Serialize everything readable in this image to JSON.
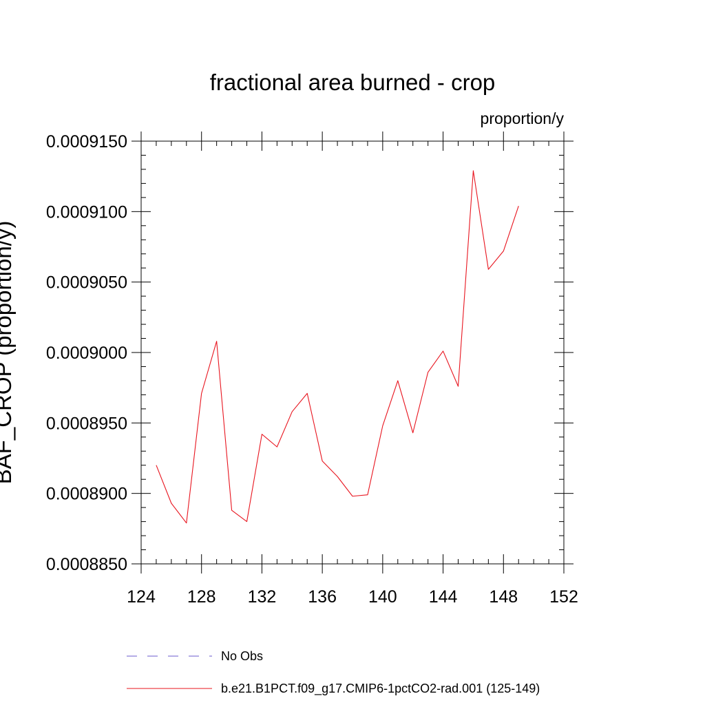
{
  "chart_data": {
    "type": "line",
    "title": "fractional area burned - crop",
    "units_label": "proportion/y",
    "ylabel": "BAF_CROP  (proportion/y)",
    "xlabel": "",
    "xlim": [
      124,
      152
    ],
    "ylim": [
      0.000885,
      0.000915
    ],
    "x_ticks": [
      "124",
      "128",
      "132",
      "136",
      "140",
      "144",
      "148",
      "152"
    ],
    "y_ticks": [
      "0.0008850",
      "0.0008900",
      "0.0008950",
      "0.0009000",
      "0.0009050",
      "0.0009100",
      "0.0009150"
    ],
    "grid": false,
    "legend": [
      {
        "label": "No Obs",
        "style": "dashed",
        "color": "#6a5acd"
      },
      {
        "label": "b.e21.B1PCT.f09_g17.CMIP6-1pctCO2-rad.001 (125-149)",
        "style": "solid",
        "color": "#e8141e"
      }
    ],
    "series": [
      {
        "name": "b.e21.B1PCT.f09_g17.CMIP6-1pctCO2-rad.001 (125-149)",
        "color": "#e8141e",
        "x": [
          125,
          126,
          127,
          128,
          129,
          130,
          131,
          132,
          133,
          134,
          135,
          136,
          137,
          138,
          139,
          140,
          141,
          142,
          143,
          144,
          145,
          146,
          147,
          148,
          149
        ],
        "values": [
          0.000892,
          0.0008893,
          0.0008879,
          0.0008971,
          0.0009008,
          0.0008888,
          0.000888,
          0.0008942,
          0.0008933,
          0.0008958,
          0.0008971,
          0.0008923,
          0.0008912,
          0.0008898,
          0.0008899,
          0.0008948,
          0.000898,
          0.0008943,
          0.0008986,
          0.0009001,
          0.0008976,
          0.0009129,
          0.0009059,
          0.0009072,
          0.0009104
        ]
      }
    ]
  }
}
